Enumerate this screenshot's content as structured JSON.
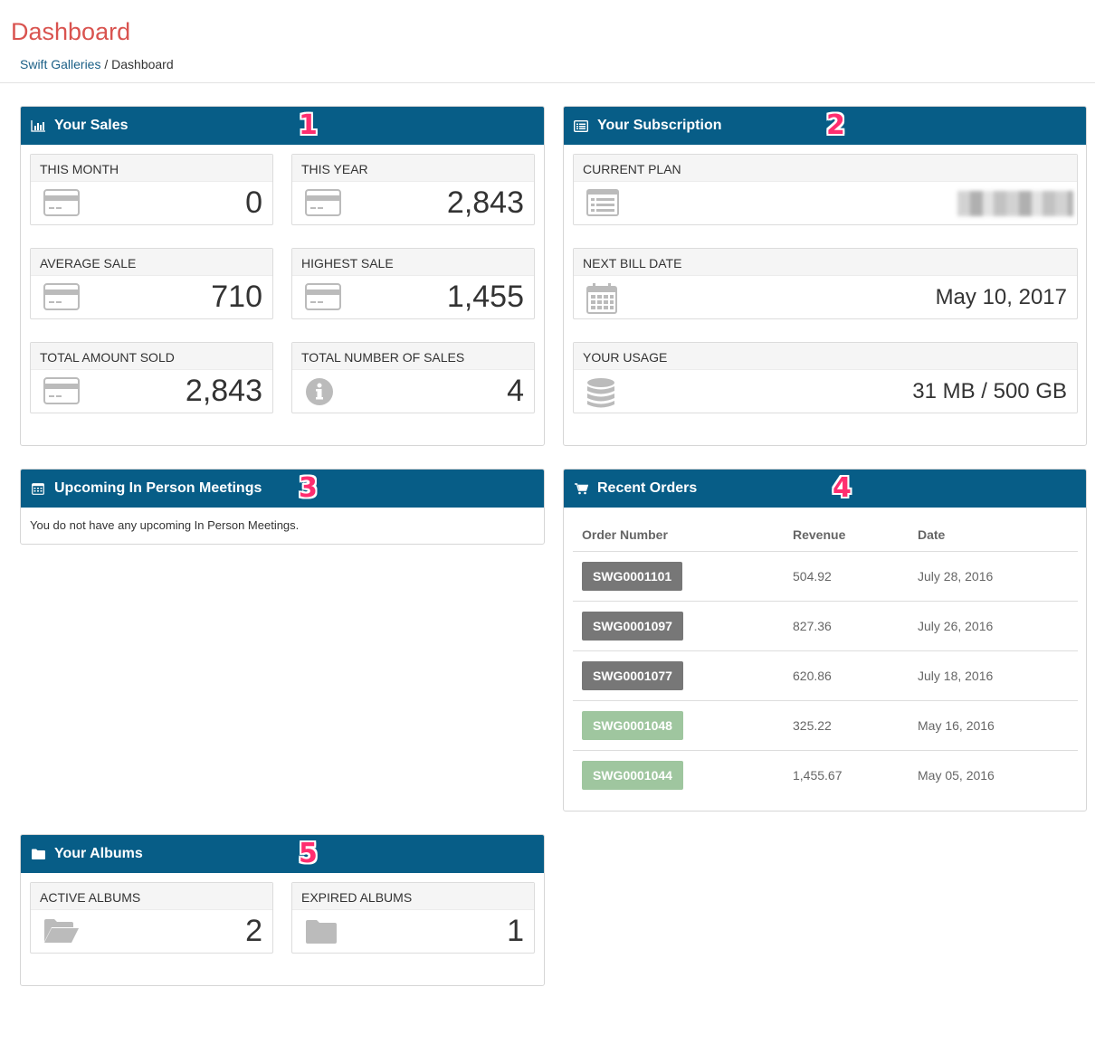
{
  "header": {
    "title": "Dashboard",
    "breadcrumb_link": "Swift Galleries",
    "breadcrumb_sep": " / ",
    "breadcrumb_current": "Dashboard"
  },
  "markers": [
    "1",
    "2",
    "3",
    "4",
    "5"
  ],
  "sales": {
    "title": "Your Sales",
    "icon": "bar-chart-icon",
    "stats": [
      {
        "label": "THIS MONTH",
        "value": "0",
        "icon": "credit-card-icon"
      },
      {
        "label": "THIS YEAR",
        "value": "2,843",
        "icon": "credit-card-icon"
      },
      {
        "label": "AVERAGE SALE",
        "value": "710",
        "icon": "credit-card-icon"
      },
      {
        "label": "HIGHEST SALE",
        "value": "1,455",
        "icon": "credit-card-icon"
      },
      {
        "label": "TOTAL AMOUNT SOLD",
        "value": "2,843",
        "icon": "credit-card-icon"
      },
      {
        "label": "TOTAL NUMBER OF SALES",
        "value": "4",
        "icon": "info-circle-icon"
      }
    ]
  },
  "subscription": {
    "title": "Your Subscription",
    "icon": "list-alt-icon",
    "stats": [
      {
        "label": "CURRENT PLAN",
        "value": "",
        "icon": "list-alt-icon"
      },
      {
        "label": "NEXT BILL DATE",
        "value": "May 10, 2017",
        "icon": "calendar-icon"
      },
      {
        "label": "YOUR USAGE",
        "value": "31 MB / 500 GB",
        "icon": "database-icon"
      }
    ]
  },
  "meetings": {
    "title": "Upcoming In Person Meetings",
    "icon": "calendar-icon",
    "empty_message": "You do not have any upcoming In Person Meetings."
  },
  "orders": {
    "title": "Recent Orders",
    "icon": "shopping-cart-icon",
    "columns": [
      "Order Number",
      "Revenue",
      "Date"
    ],
    "rows": [
      {
        "number": "SWG0001101",
        "revenue": "504.92",
        "date": "July 28, 2016",
        "status_color": "#777777"
      },
      {
        "number": "SWG0001097",
        "revenue": "827.36",
        "date": "July 26, 2016",
        "status_color": "#777777"
      },
      {
        "number": "SWG0001077",
        "revenue": "620.86",
        "date": "July 18, 2016",
        "status_color": "#777777"
      },
      {
        "number": "SWG0001048",
        "revenue": "325.22",
        "date": "May 16, 2016",
        "status_color": "#9fc69f"
      },
      {
        "number": "SWG0001044",
        "revenue": "1,455.67",
        "date": "May 05, 2016",
        "status_color": "#9fc69f"
      }
    ]
  },
  "albums": {
    "title": "Your Albums",
    "icon": "folder-icon",
    "stats": [
      {
        "label": "ACTIVE ALBUMS",
        "value": "2",
        "icon": "folder-open-icon"
      },
      {
        "label": "EXPIRED ALBUMS",
        "value": "1",
        "icon": "folder-icon"
      }
    ]
  },
  "colors": {
    "header_bg": "#075d87",
    "title": "#d9534f",
    "link": "#1a5f86",
    "marker": "#ff2d6f"
  }
}
